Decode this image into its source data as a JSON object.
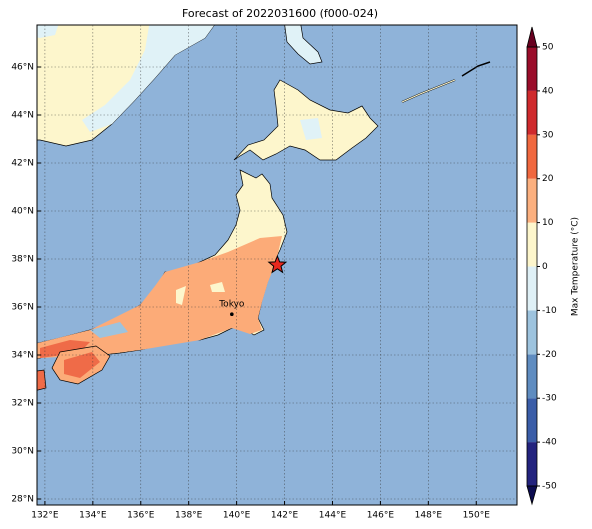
{
  "map": {
    "title": "Forecast of 2022031600 (f000-024)",
    "xlim": [
      131.67,
      151.7
    ],
    "ylim": [
      27.75,
      47.75
    ],
    "xticks": [
      {
        "value": 132,
        "label": "132°E"
      },
      {
        "value": 134,
        "label": "134°E"
      },
      {
        "value": 136,
        "label": "136°E"
      },
      {
        "value": 138,
        "label": "138°E"
      },
      {
        "value": 140,
        "label": "140°E"
      },
      {
        "value": 142,
        "label": "142°E"
      },
      {
        "value": 144,
        "label": "144°E"
      },
      {
        "value": 146,
        "label": "146°E"
      },
      {
        "value": 148,
        "label": "148°E"
      },
      {
        "value": 150,
        "label": "150°E"
      }
    ],
    "yticks": [
      {
        "value": 28,
        "label": "28°N"
      },
      {
        "value": 30,
        "label": "30°N"
      },
      {
        "value": 32,
        "label": "32°N"
      },
      {
        "value": 34,
        "label": "34°N"
      },
      {
        "value": 36,
        "label": "36°N"
      },
      {
        "value": 38,
        "label": "38°N"
      },
      {
        "value": 40,
        "label": "40°N"
      },
      {
        "value": 42,
        "label": "42°N"
      },
      {
        "value": 44,
        "label": "44°N"
      },
      {
        "value": 46,
        "label": "46°N"
      }
    ],
    "grid": true,
    "city": {
      "label": "Tokyo",
      "lon": 139.8,
      "lat": 35.7
    },
    "epicenter": {
      "lon": 141.7,
      "lat": 37.75,
      "color": "#e8281e"
    },
    "colorbar": {
      "label": "Max Temperature (°C)",
      "ticks": [
        -50,
        -40,
        -30,
        -20,
        -10,
        0,
        10,
        20,
        30,
        40,
        50
      ],
      "colors": [
        "#23237e",
        "#3a5da8",
        "#5f8cc0",
        "#9dc3de",
        "#dff0f6",
        "#fdf6cc",
        "#fcb07f",
        "#f0683f",
        "#cf2a2d",
        "#9a0d2a"
      ],
      "under_color": "#0c0c50",
      "over_color": "#67001f"
    }
  }
}
